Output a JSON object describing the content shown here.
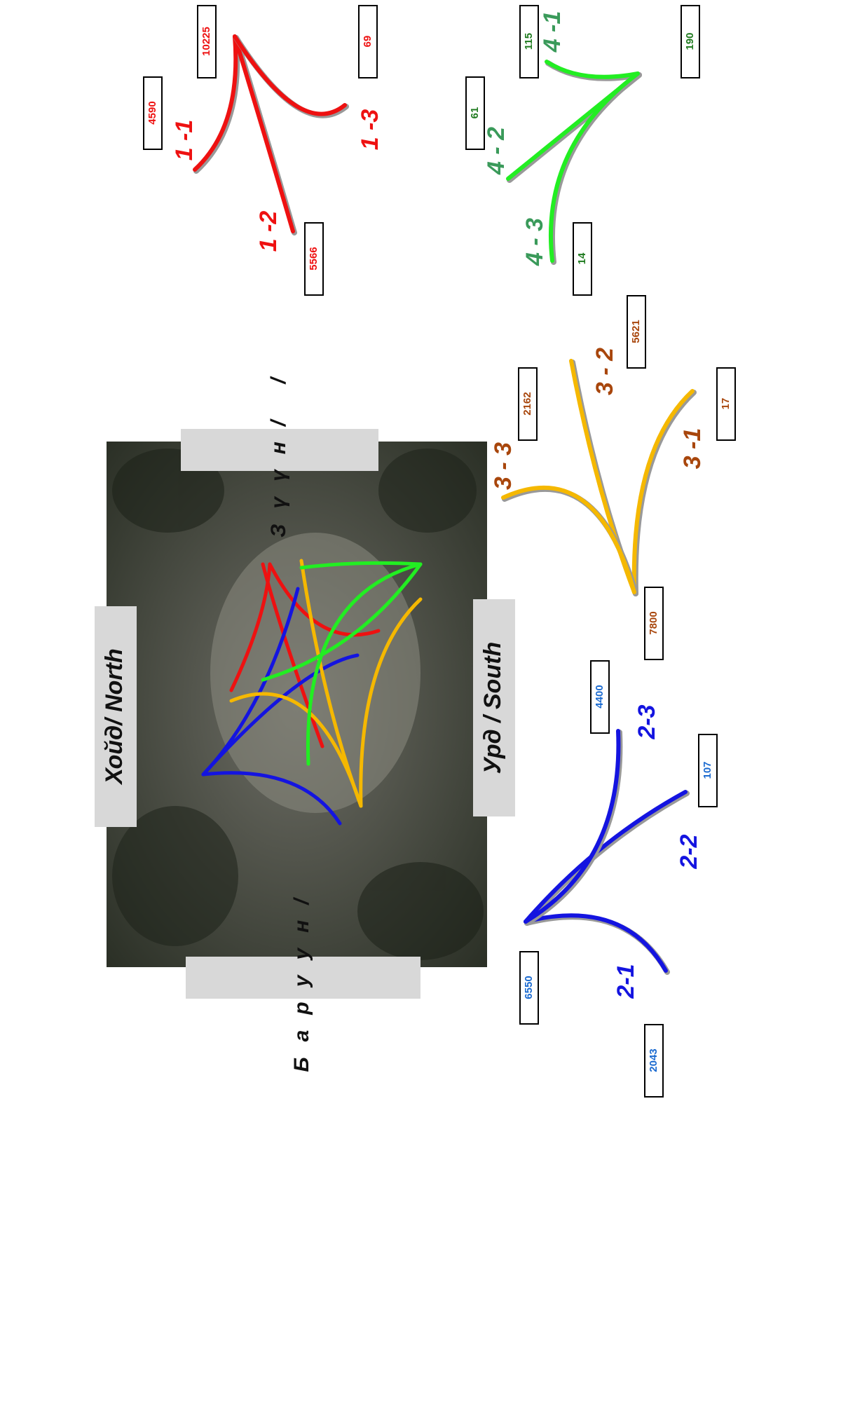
{
  "directions": {
    "north": "Хойд/ North",
    "south": "Урд / South",
    "west": "Баруун/",
    "east": "Зүүн/ /"
  },
  "groups": [
    {
      "color": "#ee1111",
      "label_color": "#ee1111",
      "count_color": "#ee1111",
      "total": 10225,
      "routes": [
        {
          "label": "1 -1",
          "count": 4590
        },
        {
          "label": "1 -2",
          "count": 5566
        },
        {
          "label": "1 -3",
          "count": 69
        }
      ]
    },
    {
      "color": "#1414e0",
      "label_color": "#1414e0",
      "count_color": "#1a6ad0",
      "total": 6550,
      "routes": [
        {
          "label": "2-1",
          "count": 2043
        },
        {
          "label": "2-2",
          "count": 107
        },
        {
          "label": "2-3",
          "count": 4400
        }
      ]
    },
    {
      "color": "#f5b800",
      "label_color": "#a8460c",
      "count_color": "#a8460c",
      "total": 7800,
      "routes": [
        {
          "label": "3 -1",
          "count": 17
        },
        {
          "label": "3 - 2",
          "count": 5621
        },
        {
          "label": "3 - 3",
          "count": 2162
        }
      ]
    },
    {
      "color": "#22ee22",
      "label_color": "#3a9a5a",
      "count_color": "#1e7a1e",
      "total": 190,
      "routes": [
        {
          "label": "4 -1",
          "count": 115
        },
        {
          "label": "4 - 2",
          "count": 61
        },
        {
          "label": "4 - 3",
          "count": 14
        }
      ]
    }
  ]
}
